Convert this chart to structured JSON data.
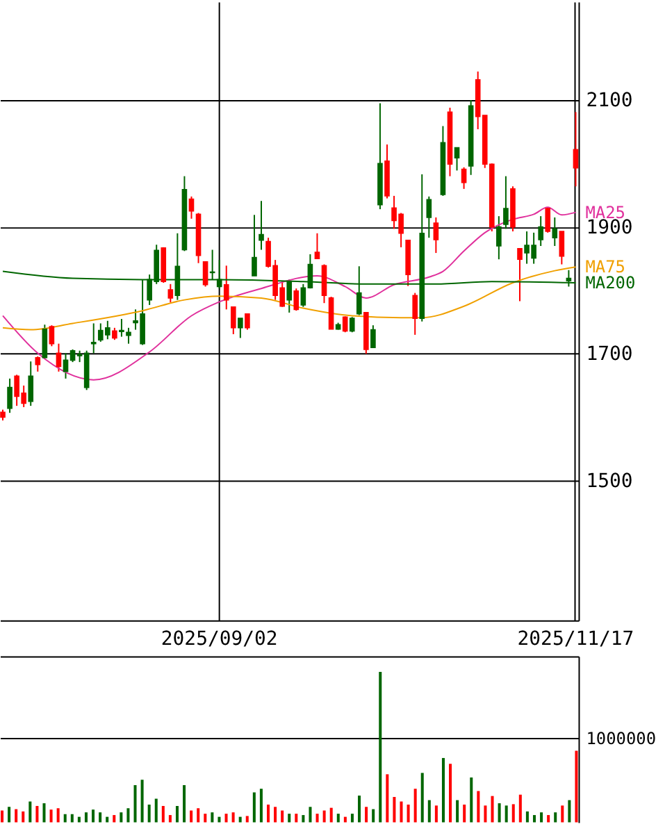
{
  "chart_data": [
    {
      "type": "candlestick",
      "categories": [
        null,
        null,
        null,
        null,
        null,
        null,
        null,
        null,
        null,
        null,
        null,
        null,
        null,
        null,
        null,
        null,
        null,
        null,
        null,
        null,
        null,
        null,
        null,
        null,
        null,
        null,
        null,
        null,
        null,
        null,
        null,
        "2025/09/02",
        null,
        null,
        null,
        null,
        null,
        null,
        null,
        null,
        null,
        null,
        null,
        null,
        null,
        null,
        null,
        null,
        null,
        null,
        null,
        null,
        null,
        null,
        null,
        null,
        null,
        null,
        null,
        null,
        null,
        null,
        null,
        null,
        null,
        null,
        null,
        null,
        null,
        null,
        null,
        null,
        null,
        null,
        null,
        null,
        null,
        null,
        null,
        null,
        null,
        null,
        "2025/11/17"
      ],
      "ohlc": [
        [
          1600,
          1612,
          1595,
          1608
        ],
        [
          1647,
          1661,
          1607,
          1614
        ],
        [
          1633,
          1667,
          1618,
          1665
        ],
        [
          1622,
          1650,
          1616,
          1638
        ],
        [
          1665,
          1688,
          1618,
          1625
        ],
        [
          1683,
          1696,
          1672,
          1694
        ],
        [
          1739,
          1746,
          1692,
          1694
        ],
        [
          1716,
          1745,
          1712,
          1743
        ],
        [
          1680,
          1716,
          1672,
          1701
        ],
        [
          1690,
          1701,
          1661,
          1672
        ],
        [
          1705,
          1707,
          1687,
          1690
        ],
        [
          1699,
          1705,
          1687,
          1697
        ],
        [
          1701,
          1705,
          1643,
          1647
        ],
        [
          1718,
          1748,
          1701,
          1716
        ],
        [
          1737,
          1748,
          1719,
          1722
        ],
        [
          1741,
          1752,
          1723,
          1730
        ],
        [
          1725,
          1741,
          1722,
          1736
        ],
        [
          1737,
          1755,
          1727,
          1735
        ],
        [
          1734,
          1741,
          1716,
          1729
        ],
        [
          1752,
          1770,
          1738,
          1749
        ],
        [
          1763,
          1817,
          1714,
          1716
        ],
        [
          1817,
          1825,
          1777,
          1785
        ],
        [
          1863,
          1872,
          1810,
          1814
        ],
        [
          1814,
          1868,
          1812,
          1867
        ],
        [
          1788,
          1810,
          1781,
          1801
        ],
        [
          1838,
          1890,
          1785,
          1792
        ],
        [
          1959,
          1980,
          1862,
          1864
        ],
        [
          1925,
          1948,
          1913,
          1944
        ],
        [
          1855,
          1922,
          1843,
          1920
        ],
        [
          1809,
          1846,
          1806,
          1845
        ],
        [
          1829,
          1864,
          1817,
          1828
        ],
        [
          1817,
          1848,
          1803,
          1806
        ],
        [
          1785,
          1839,
          1770,
          1809
        ],
        [
          1741,
          1774,
          1731,
          1774
        ],
        [
          1756,
          1756,
          1725,
          1741
        ],
        [
          1741,
          1763,
          1738,
          1763
        ],
        [
          1852,
          1919,
          1823,
          1823
        ],
        [
          1888,
          1941,
          1864,
          1879
        ],
        [
          1838,
          1883,
          1836,
          1877
        ],
        [
          1792,
          1848,
          1785,
          1839
        ],
        [
          1775,
          1814,
          1774,
          1804
        ],
        [
          1814,
          1817,
          1765,
          1785
        ],
        [
          1770,
          1803,
          1768,
          1799
        ],
        [
          1804,
          1810,
          1774,
          1777
        ],
        [
          1841,
          1857,
          1803,
          1804
        ],
        [
          1850,
          1890,
          1850,
          1860
        ],
        [
          1792,
          1841,
          1780,
          1839
        ],
        [
          1739,
          1790,
          1739,
          1788
        ],
        [
          1746,
          1749,
          1738,
          1739
        ],
        [
          1736,
          1759,
          1734,
          1758
        ],
        [
          1756,
          1758,
          1734,
          1736
        ],
        [
          1796,
          1838,
          1761,
          1763
        ],
        [
          1707,
          1765,
          1700,
          1765
        ],
        [
          1738,
          1745,
          1709,
          1710
        ],
        [
          2000,
          2095,
          1928,
          1935
        ],
        [
          1949,
          2030,
          1945,
          2004
        ],
        [
          1910,
          1949,
          1897,
          1930
        ],
        [
          1890,
          1922,
          1868,
          1920
        ],
        [
          1825,
          1879,
          1807,
          1879
        ],
        [
          1756,
          1796,
          1730,
          1792
        ],
        [
          1890,
          1983,
          1751,
          1756
        ],
        [
          1943,
          1948,
          1883,
          1915
        ],
        [
          1880,
          1915,
          1859,
          1906
        ],
        [
          2033,
          2059,
          1949,
          1951
        ],
        [
          1999,
          2088,
          1980,
          2081
        ],
        [
          2025,
          2025,
          1989,
          2009
        ],
        [
          1970,
          1994,
          1960,
          1991
        ],
        [
          2091,
          2100,
          1982,
          1996
        ],
        [
          2074,
          2145,
          2054,
          2132
        ],
        [
          1999,
          2076,
          1993,
          2076
        ],
        [
          1900,
          2000,
          1893,
          1999
        ],
        [
          1900,
          1917,
          1849,
          1870
        ],
        [
          1929,
          1980,
          1897,
          1904
        ],
        [
          1900,
          1964,
          1893,
          1960
        ],
        [
          1849,
          1866,
          1783,
          1866
        ],
        [
          1871,
          1893,
          1842,
          1859
        ],
        [
          1871,
          1891,
          1842,
          1851
        ],
        [
          1900,
          1917,
          1870,
          1880
        ],
        [
          1893,
          1931,
          1891,
          1929
        ],
        [
          1897,
          1915,
          1870,
          1883
        ],
        [
          1854,
          1893,
          1841,
          1893
        ],
        [
          1819,
          1832,
          1806,
          1815
        ],
        [
          1993,
          2081,
          1964,
          2022
        ]
      ],
      "colors": [
        "#ff0000",
        "#006600",
        "#ff0000",
        "#ff0000",
        "#006600",
        "#ff0000",
        "#006600",
        "#ff0000",
        "#ff0000",
        "#006600",
        "#006600",
        "#006600",
        "#006600",
        "#006600",
        "#006600",
        "#006600",
        "#ff0000",
        "#006600",
        "#006600",
        "#006600",
        "#006600",
        "#006600",
        "#006600",
        "#ff0000",
        "#ff0000",
        "#006600",
        "#006600",
        "#ff0000",
        "#ff0000",
        "#ff0000",
        "#006600",
        "#006600",
        "#ff0000",
        "#ff0000",
        "#006600",
        "#ff0000",
        "#006600",
        "#006600",
        "#ff0000",
        "#ff0000",
        "#ff0000",
        "#006600",
        "#ff0000",
        "#006600",
        "#006600",
        "#ff0000",
        "#ff0000",
        "#ff0000",
        "#006600",
        "#ff0000",
        "#006600",
        "#006600",
        "#ff0000",
        "#006600",
        "#006600",
        "#ff0000",
        "#ff0000",
        "#ff0000",
        "#ff0000",
        "#ff0000",
        "#006600",
        "#006600",
        "#ff0000",
        "#006600",
        "#ff0000",
        "#006600",
        "#ff0000",
        "#006600",
        "#ff0000",
        "#ff0000",
        "#ff0000",
        "#006600",
        "#006600",
        "#ff0000",
        "#ff0000",
        "#006600",
        "#006600",
        "#006600",
        "#ff0000",
        "#006600",
        "#ff0000",
        "#006600",
        "#ff0000"
      ],
      "series": [
        {
          "name": "MA25",
          "type": "line",
          "color": "#e0309c",
          "values": [
            1760,
            null,
            null,
            null,
            null,
            1701,
            null,
            null,
            null,
            null,
            null,
            null,
            null,
            1659,
            null,
            null,
            null,
            null,
            null,
            null,
            null,
            1703,
            null,
            null,
            null,
            null,
            null,
            1760,
            null,
            null,
            null,
            1782,
            null,
            null,
            null,
            null,
            null,
            1803,
            null,
            null,
            null,
            null,
            null,
            null,
            null,
            1823,
            null,
            null,
            null,
            1806,
            null,
            null,
            1788,
            null,
            null,
            null,
            1809,
            null,
            null,
            null,
            null,
            1821,
            null,
            1830,
            null,
            null,
            1862,
            null,
            null,
            1891,
            null,
            null,
            null,
            1912,
            null,
            null,
            1920,
            null,
            1931,
            null,
            1919,
            null,
            1923
          ]
        },
        {
          "name": "MA75",
          "type": "line",
          "color": "#f0a000",
          "values": [
            1741,
            null,
            null,
            null,
            1738,
            null,
            null,
            null,
            null,
            null,
            1748,
            null,
            null,
            null,
            null,
            null,
            null,
            null,
            null,
            null,
            1768,
            null,
            null,
            null,
            null,
            null,
            1785,
            null,
            null,
            null,
            null,
            1791,
            null,
            null,
            null,
            null,
            null,
            1788,
            null,
            null,
            null,
            null,
            null,
            1772,
            null,
            null,
            null,
            null,
            null,
            null,
            1760,
            null,
            null,
            null,
            null,
            null,
            null,
            1757,
            null,
            null,
            1757,
            null,
            null,
            null,
            null,
            null,
            1775,
            null,
            null,
            null,
            null,
            null,
            null,
            1812,
            null,
            null,
            null,
            null,
            null,
            1831,
            null,
            null,
            1837
          ]
        },
        {
          "name": "MA200",
          "type": "line",
          "color": "#006600",
          "values": [
            1830,
            null,
            null,
            null,
            null,
            null,
            null,
            null,
            null,
            null,
            1819,
            null,
            null,
            null,
            null,
            null,
            null,
            null,
            null,
            null,
            1817,
            null,
            null,
            null,
            null,
            null,
            null,
            null,
            null,
            null,
            null,
            1817,
            null,
            null,
            null,
            null,
            null,
            null,
            null,
            null,
            null,
            null,
            null,
            1814,
            null,
            null,
            null,
            null,
            null,
            null,
            null,
            null,
            1810,
            null,
            null,
            null,
            null,
            null,
            null,
            null,
            null,
            null,
            1810,
            null,
            null,
            null,
            null,
            null,
            null,
            null,
            1814,
            null,
            null,
            null,
            null,
            null,
            null,
            null,
            null,
            null,
            null,
            null,
            1812
          ]
        }
      ],
      "ylim": [
        1280,
        2255
      ],
      "yticks": [
        1500,
        1700,
        1900,
        2100
      ],
      "grid": true
    },
    {
      "type": "bar",
      "categories": [
        null,
        null,
        null,
        null,
        null,
        null,
        null,
        null,
        null,
        null,
        null,
        null,
        null,
        null,
        null,
        null,
        null,
        null,
        null,
        null,
        null,
        null,
        null,
        null,
        null,
        null,
        null,
        null,
        null,
        null,
        null,
        null,
        null,
        null,
        null,
        null,
        null,
        null,
        null,
        null,
        null,
        null,
        null,
        null,
        null,
        null,
        null,
        null,
        null,
        null,
        null,
        null,
        null,
        null,
        null,
        null,
        null,
        null,
        null,
        null,
        null,
        null,
        null,
        null,
        null,
        null,
        null,
        null,
        null,
        null,
        null,
        null,
        null,
        null,
        null,
        null,
        null,
        null,
        null,
        null,
        null,
        null,
        null
      ],
      "values": [
        140000,
        183000,
        156000,
        129000,
        247000,
        194000,
        226000,
        151000,
        167000,
        97000,
        97000,
        65000,
        118000,
        151000,
        118000,
        65000,
        86000,
        118000,
        167000,
        441000,
        505000,
        210000,
        280000,
        194000,
        86000,
        194000,
        441000,
        140000,
        167000,
        102000,
        118000,
        65000,
        102000,
        118000,
        65000,
        75000,
        355000,
        398000,
        210000,
        183000,
        140000,
        102000,
        102000,
        86000,
        183000,
        102000,
        140000,
        172000,
        102000,
        65000,
        102000,
        317000,
        183000,
        156000,
        1785000,
        570000,
        301000,
        247000,
        210000,
        398000,
        586000,
        263000,
        199000,
        763000,
        694000,
        263000,
        210000,
        532000,
        371000,
        199000,
        312000,
        226000,
        199000,
        215000,
        328000,
        129000,
        86000,
        118000,
        86000,
        118000,
        199000,
        263000,
        849000
      ],
      "colors": [
        "#ff0000",
        "#006600",
        "#ff0000",
        "#ff0000",
        "#006600",
        "#ff0000",
        "#006600",
        "#ff0000",
        "#ff0000",
        "#006600",
        "#006600",
        "#006600",
        "#006600",
        "#006600",
        "#006600",
        "#006600",
        "#ff0000",
        "#006600",
        "#006600",
        "#006600",
        "#006600",
        "#006600",
        "#006600",
        "#ff0000",
        "#ff0000",
        "#006600",
        "#006600",
        "#ff0000",
        "#ff0000",
        "#ff0000",
        "#006600",
        "#006600",
        "#ff0000",
        "#ff0000",
        "#006600",
        "#ff0000",
        "#006600",
        "#006600",
        "#ff0000",
        "#ff0000",
        "#ff0000",
        "#006600",
        "#ff0000",
        "#006600",
        "#006600",
        "#ff0000",
        "#ff0000",
        "#ff0000",
        "#006600",
        "#ff0000",
        "#006600",
        "#006600",
        "#ff0000",
        "#006600",
        "#006600",
        "#ff0000",
        "#ff0000",
        "#ff0000",
        "#ff0000",
        "#ff0000",
        "#006600",
        "#006600",
        "#ff0000",
        "#006600",
        "#ff0000",
        "#006600",
        "#ff0000",
        "#006600",
        "#ff0000",
        "#ff0000",
        "#ff0000",
        "#006600",
        "#006600",
        "#ff0000",
        "#ff0000",
        "#006600",
        "#006600",
        "#006600",
        "#ff0000",
        "#006600",
        "#ff0000",
        "#006600",
        "#ff0000"
      ],
      "ylim": [
        0,
        1970000
      ],
      "yticks": [
        1000000
      ],
      "grid": "y",
      "tick_labels": "y"
    }
  ]
}
